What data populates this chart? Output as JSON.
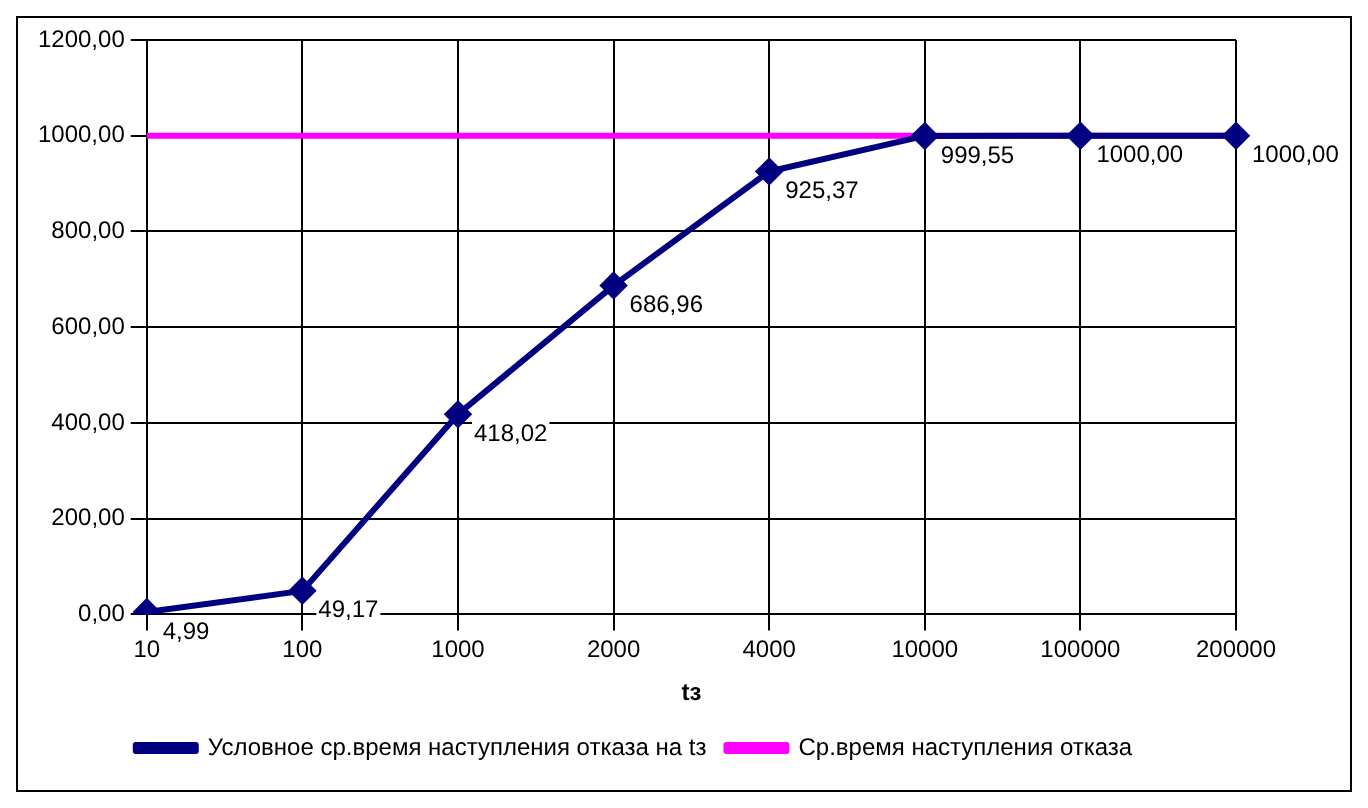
{
  "chart_data": {
    "type": "line",
    "xlabel": "tз",
    "categories": [
      "10",
      "100",
      "1000",
      "2000",
      "4000",
      "10000",
      "100000",
      "200000"
    ],
    "series": [
      {
        "name": "Условное ср.время наступления отказа на tз",
        "color": "#000080",
        "marker": "diamond",
        "values": [
          4.99,
          49.17,
          418.02,
          686.96,
          925.37,
          999.55,
          1000,
          1000
        ],
        "value_labels": [
          "4,99",
          "49,17",
          "418,02",
          "686,96",
          "925,37",
          "999,55",
          "1000,00",
          "1000,00"
        ]
      },
      {
        "name": "Ср.время наступления отказа",
        "color": "#ff00ff",
        "marker": "none",
        "values": [
          1000,
          1000,
          1000,
          1000,
          1000,
          1000,
          1000,
          1000
        ]
      }
    ],
    "ylim": [
      0,
      1200
    ],
    "yticks": [
      {
        "value": 0,
        "label": "0,00"
      },
      {
        "value": 200,
        "label": "200,00"
      },
      {
        "value": 400,
        "label": "400,00"
      },
      {
        "value": 600,
        "label": "600,00"
      },
      {
        "value": 800,
        "label": "800,00"
      },
      {
        "value": 1000,
        "label": "1000,00"
      },
      {
        "value": 1200,
        "label": "1200,00"
      }
    ],
    "grid": true,
    "legend": "bottom"
  }
}
